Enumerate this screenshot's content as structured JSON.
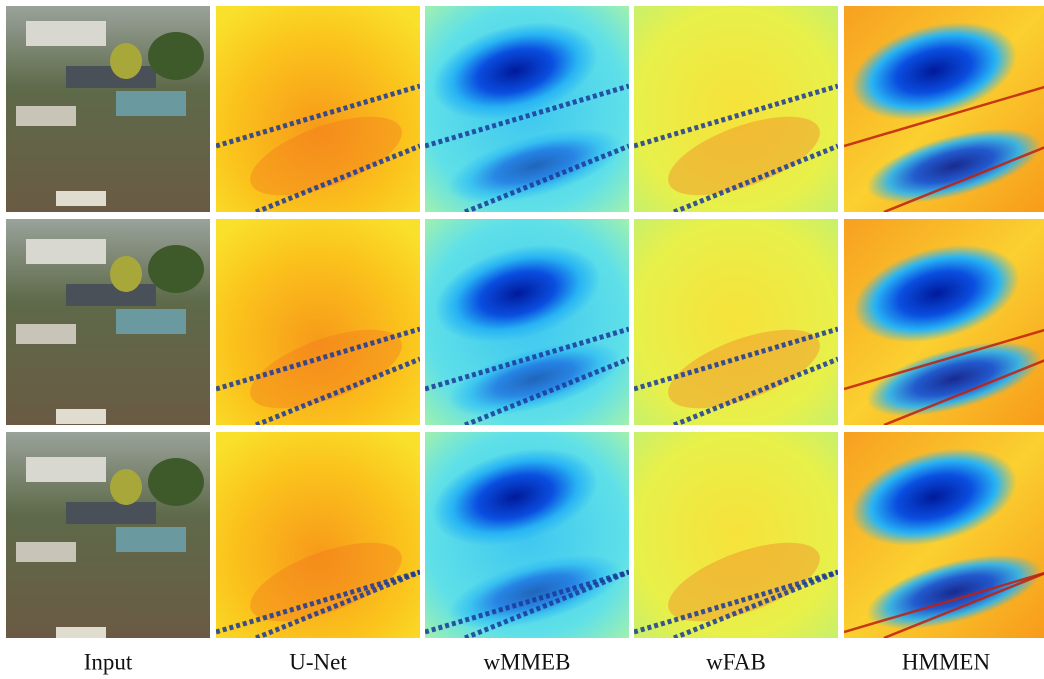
{
  "figure": {
    "columns": [
      "Input",
      "U-Net",
      "wMMEB",
      "wFAB",
      "HMMEN"
    ]
  }
}
